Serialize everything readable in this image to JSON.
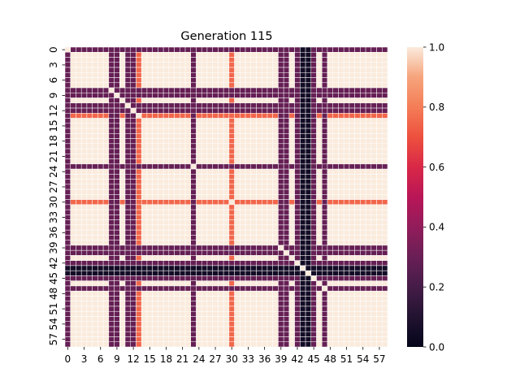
{
  "chart_data": {
    "type": "heatmap",
    "title": "Generation 115",
    "xlabel": "",
    "ylabel": "",
    "size": 59,
    "tick_labels": [
      "0",
      "3",
      "6",
      "9",
      "12",
      "15",
      "18",
      "21",
      "24",
      "27",
      "30",
      "33",
      "36",
      "39",
      "42",
      "45",
      "48",
      "51",
      "54",
      "57"
    ],
    "tick_indices": [
      0,
      3,
      6,
      9,
      12,
      15,
      18,
      21,
      24,
      27,
      30,
      33,
      36,
      39,
      42,
      45,
      48,
      51,
      54,
      57
    ],
    "row_profile": [
      0.29,
      1,
      1,
      1,
      1,
      1,
      1,
      1,
      0.29,
      0.29,
      1,
      0.29,
      0.29,
      0.75,
      1,
      1,
      1,
      1,
      1,
      1,
      1,
      1,
      1,
      0.29,
      1,
      1,
      1,
      1,
      1,
      1,
      0.75,
      1,
      1,
      1,
      1,
      1,
      1,
      1,
      1,
      0.29,
      0.29,
      1,
      0.29,
      0.05,
      0.05,
      0.29,
      1,
      0.29,
      1,
      1,
      1,
      1,
      1,
      1,
      1,
      1,
      1,
      1,
      1
    ],
    "combine": "min",
    "diagonal": 1.0,
    "colorbar": {
      "min": 0.0,
      "max": 1.0,
      "ticks": [
        "0.0",
        "0.2",
        "0.4",
        "0.6",
        "0.8",
        "1.0"
      ]
    },
    "colormap": "rocket",
    "grid_lines": "white"
  }
}
